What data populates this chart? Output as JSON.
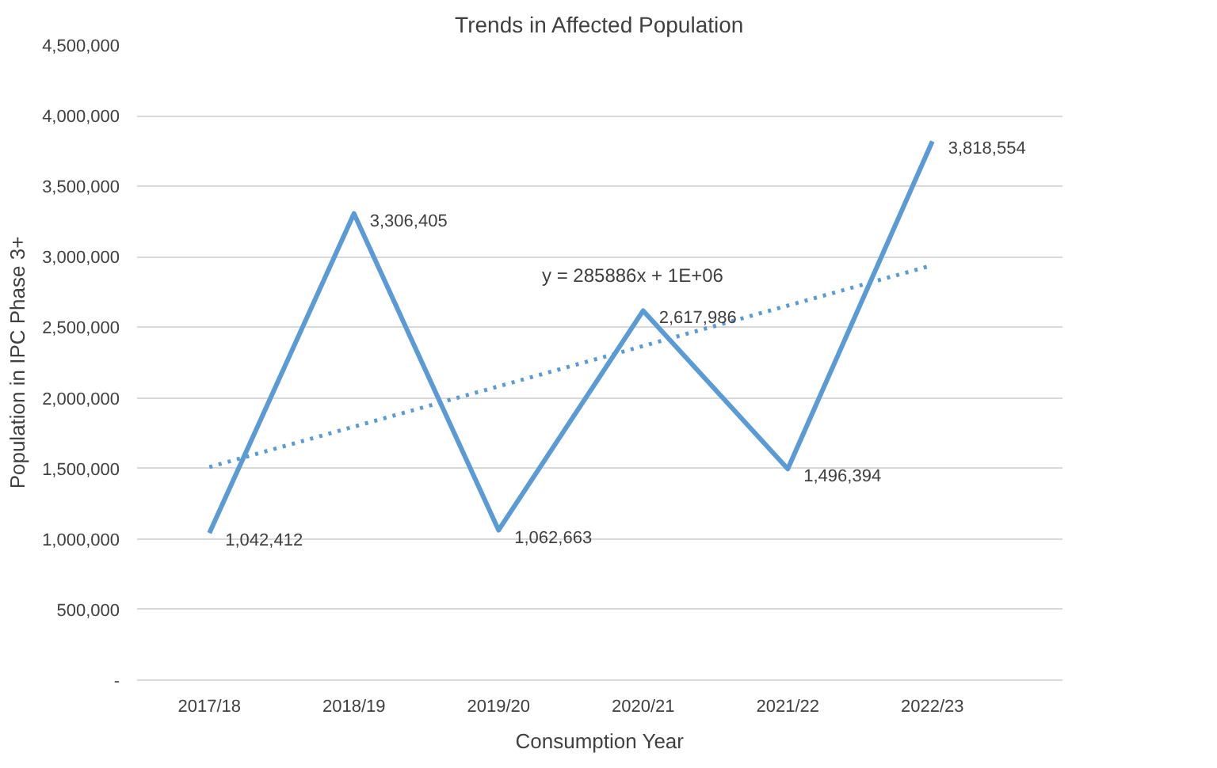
{
  "chart_data": {
    "type": "line",
    "title": "Trends in Affected Population",
    "xlabel": "Consumption Year",
    "ylabel": "Population in IPC Phase 3+",
    "categories": [
      "2017/18",
      "2018/19",
      "2019/20",
      "2020/21",
      "2021/22",
      "2022/23"
    ],
    "series": [
      {
        "color": "#5b9bd5",
        "values": [
          1042412,
          3306405,
          1062663,
          2617986,
          1496394,
          3818554
        ],
        "value_labels": [
          "1,042,412",
          "3,306,405",
          "1,062,663",
          "2,617,986",
          "1,496,394",
          "3,818,554"
        ],
        "line_style": "solid"
      },
      {
        "color": "#5b9bd5",
        "x": [
          "2017/18",
          "2022/23"
        ],
        "values": [
          1510000,
          2940000
        ],
        "line_style": "dotted"
      }
    ],
    "annotations": [
      "y = 285886x + 1E+06"
    ],
    "ylim": [
      0,
      4500000
    ],
    "yticks": [
      {
        "value": 0,
        "label": "-"
      },
      {
        "value": 500000,
        "label": "500,000"
      },
      {
        "value": 1000000,
        "label": "1,000,000"
      },
      {
        "value": 1500000,
        "label": "1,500,000"
      },
      {
        "value": 2000000,
        "label": "2,000,000"
      },
      {
        "value": 2500000,
        "label": "2,500,000"
      },
      {
        "value": 3000000,
        "label": "3,000,000"
      },
      {
        "value": 3500000,
        "label": "3,500,000"
      },
      {
        "value": 4000000,
        "label": "4,000,000"
      },
      {
        "value": 4500000,
        "label": "4,500,000"
      }
    ],
    "grid": "y",
    "marker": "none"
  }
}
